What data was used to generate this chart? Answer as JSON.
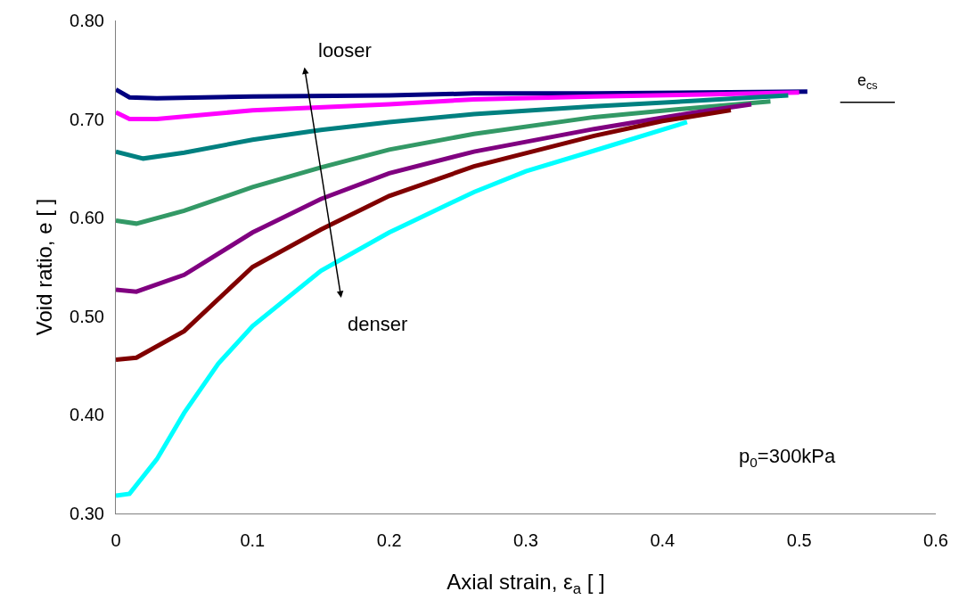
{
  "chart_data": {
    "type": "line",
    "xlabel": "Axial strain, ε$_{a}$ [ ]",
    "ylabel": "Void ratio, e [ ]",
    "xlim": [
      0,
      0.6
    ],
    "xticks": [
      {
        "value": 0,
        "label": "0"
      },
      0.1,
      0.2,
      0.3,
      0.4,
      0.5,
      0.6
    ],
    "ylim": [
      0.3,
      0.8
    ],
    "yticks": [
      {
        "value": 0.3,
        "label": "0.30"
      },
      {
        "value": 0.4,
        "label": "0.40"
      },
      {
        "value": 0.5,
        "label": "0.50"
      },
      {
        "value": 0.6,
        "label": "0.60"
      },
      {
        "value": 0.7,
        "label": "0.70"
      },
      {
        "value": 0.8,
        "label": "0.80"
      }
    ],
    "legend": false,
    "marker": "none",
    "line_style": "solid",
    "series": [
      {
        "color": "#000080",
        "x": [
          0,
          0.01,
          0.03,
          0.1,
          0.2,
          0.262,
          0.35,
          0.43,
          0.506
        ],
        "values": [
          0.73,
          0.722,
          0.721,
          0.723,
          0.724,
          0.726,
          0.726,
          0.727,
          0.728
        ]
      },
      {
        "color": "#ff00ff",
        "x": [
          0,
          0.01,
          0.03,
          0.1,
          0.2,
          0.262,
          0.35,
          0.43,
          0.5
        ],
        "values": [
          0.707,
          0.7,
          0.7,
          0.709,
          0.715,
          0.72,
          0.723,
          0.725,
          0.727
        ]
      },
      {
        "color": "#008080",
        "x": [
          0,
          0.02,
          0.05,
          0.1,
          0.15,
          0.2,
          0.262,
          0.35,
          0.43,
          0.492
        ],
        "values": [
          0.667,
          0.66,
          0.666,
          0.679,
          0.689,
          0.697,
          0.705,
          0.713,
          0.719,
          0.724
        ]
      },
      {
        "color": "#339966",
        "x": [
          0,
          0.015,
          0.05,
          0.1,
          0.15,
          0.2,
          0.262,
          0.35,
          0.42,
          0.479
        ],
        "values": [
          0.597,
          0.594,
          0.607,
          0.631,
          0.651,
          0.669,
          0.685,
          0.702,
          0.711,
          0.718
        ]
      },
      {
        "color": "#800080",
        "x": [
          0,
          0.015,
          0.05,
          0.1,
          0.15,
          0.2,
          0.262,
          0.35,
          0.42,
          0.465
        ],
        "values": [
          0.527,
          0.525,
          0.542,
          0.585,
          0.619,
          0.645,
          0.667,
          0.69,
          0.706,
          0.715
        ]
      },
      {
        "color": "#800000",
        "x": [
          0,
          0.015,
          0.05,
          0.1,
          0.15,
          0.2,
          0.262,
          0.35,
          0.4,
          0.45
        ],
        "values": [
          0.456,
          0.458,
          0.485,
          0.55,
          0.588,
          0.622,
          0.652,
          0.683,
          0.698,
          0.709
        ]
      },
      {
        "color": "#00ffff",
        "x": [
          0,
          0.01,
          0.03,
          0.05,
          0.075,
          0.1,
          0.15,
          0.2,
          0.262,
          0.3,
          0.35,
          0.418
        ],
        "values": [
          0.318,
          0.32,
          0.355,
          0.402,
          0.452,
          0.49,
          0.546,
          0.585,
          0.626,
          0.647,
          0.668,
          0.697
        ]
      },
      {
        "name": "e$_{cs}$",
        "color": "#000000",
        "x": [
          0.53,
          0.57
        ],
        "values": [
          0.717,
          0.717
        ]
      }
    ],
    "annotations": [
      "looser",
      "denser",
      "p$_{0}$=300kPa"
    ]
  }
}
